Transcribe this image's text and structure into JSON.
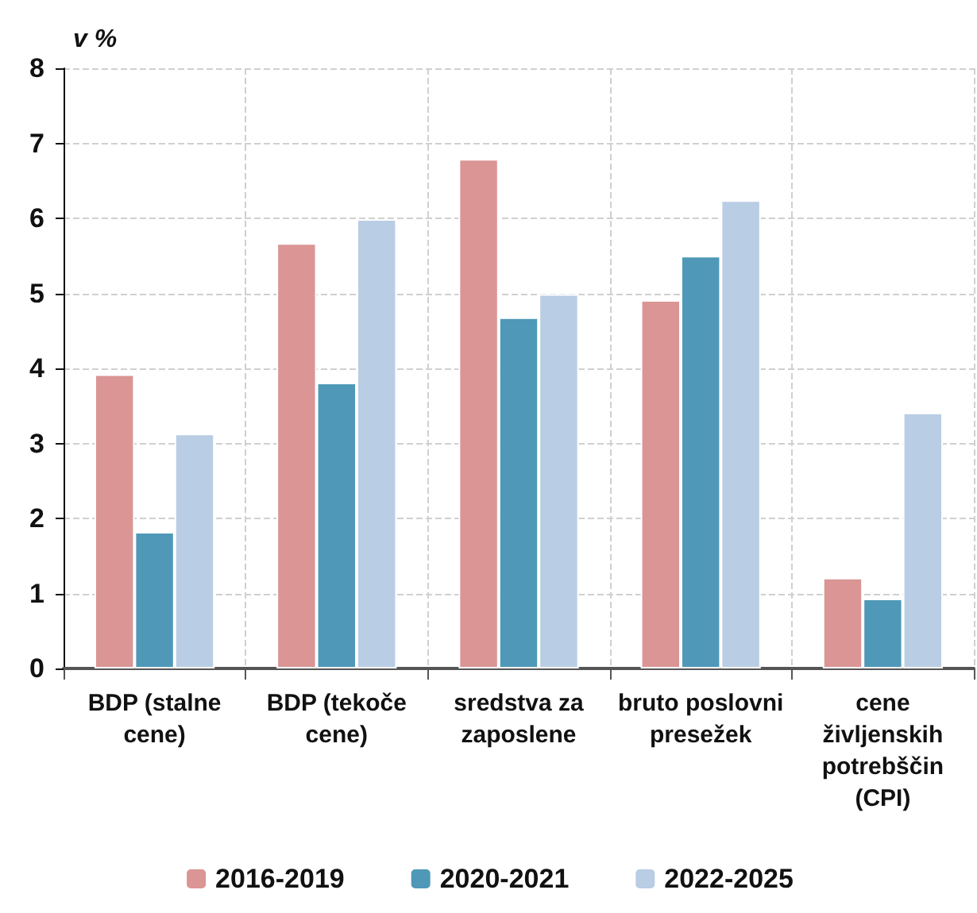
{
  "chart_data": {
    "type": "bar",
    "ylabel": "v %",
    "categories": [
      "BDP (stalne\ncene)",
      "BDP (tekoče\ncene)",
      "sredstva za\nzaposlene",
      "bruto poslovni\npresežek",
      "cene\nživljenskih\npotrebščin\n(CPI)"
    ],
    "series": [
      {
        "name": "2016-2019",
        "color": "#da9594",
        "values": [
          3.92,
          5.67,
          6.79,
          4.91,
          1.21
        ]
      },
      {
        "name": "2020-2021",
        "color": "#4f98b8",
        "values": [
          1.82,
          3.81,
          4.68,
          5.5,
          0.93
        ]
      },
      {
        "name": "2022-2025",
        "color": "#b9cde4",
        "values": [
          3.13,
          5.99,
          4.99,
          6.24,
          3.41
        ]
      }
    ],
    "ylim": [
      0,
      8
    ],
    "yticks": [
      0,
      1,
      2,
      3,
      4,
      5,
      6,
      7,
      8
    ],
    "grid": true,
    "legend": "bottom"
  }
}
